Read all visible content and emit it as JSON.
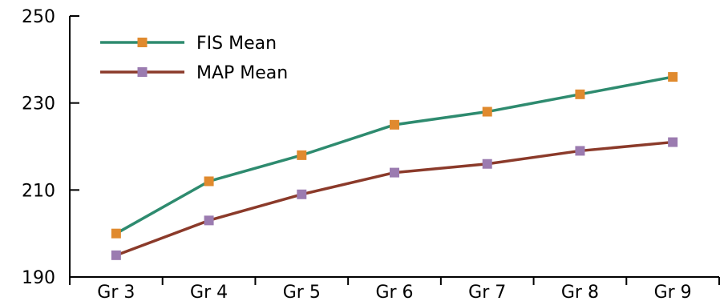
{
  "chart_data": {
    "type": "line",
    "title": "",
    "xlabel": "",
    "ylabel": "",
    "categories": [
      "Gr 3",
      "Gr 4",
      "Gr 5",
      "Gr 6",
      "Gr 7",
      "Gr 8",
      "Gr 9"
    ],
    "ylim": [
      190,
      250
    ],
    "yticks": [
      190,
      210,
      230,
      250
    ],
    "grid": false,
    "legend_position": "top-left",
    "series": [
      {
        "name": "FIS Mean",
        "values": [
          200,
          212,
          218,
          225,
          228,
          232,
          236
        ],
        "line_color": "#2e8b6f",
        "marker_color": "#e08a2e",
        "marker": "square"
      },
      {
        "name": "MAP Mean",
        "values": [
          195,
          203,
          209,
          214,
          216,
          219,
          221
        ],
        "line_color": "#8b3a2a",
        "marker_color": "#9b7bb0",
        "marker": "square"
      }
    ]
  }
}
